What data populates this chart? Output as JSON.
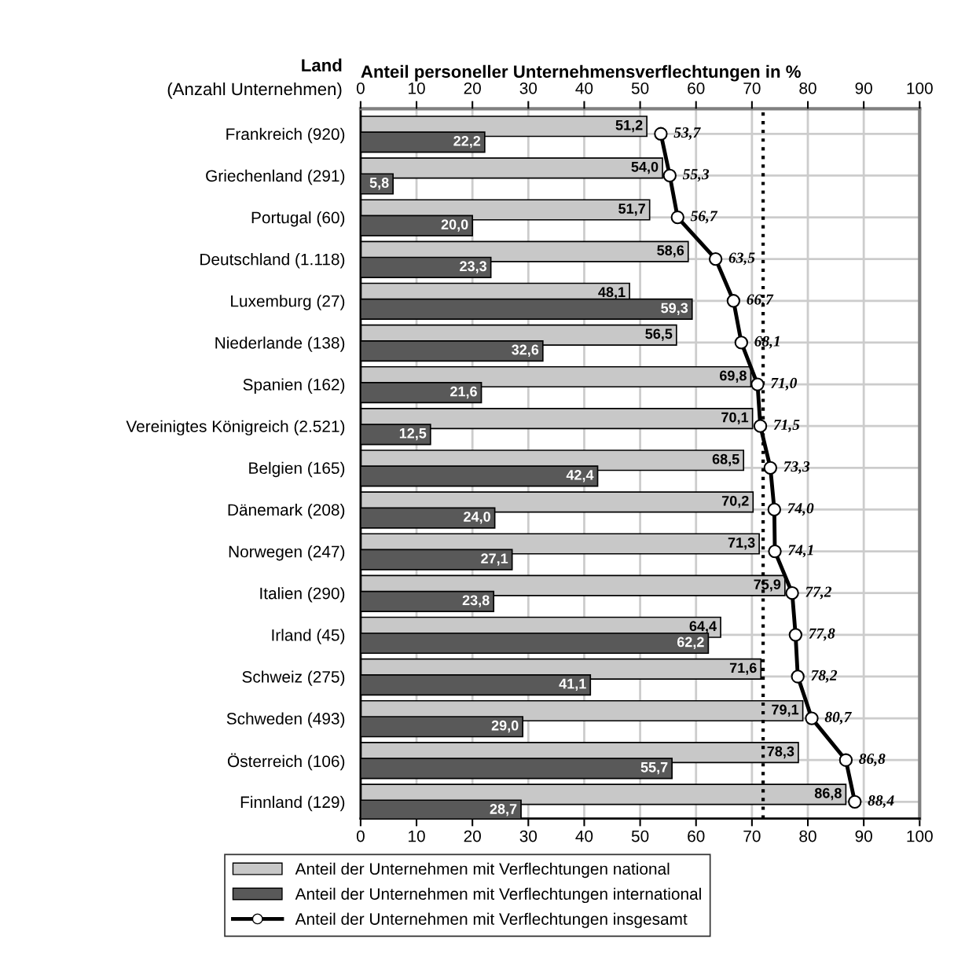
{
  "chart_data": {
    "type": "bar",
    "orientation": "horizontal",
    "ylabel": "Land",
    "x2label": "Anteil personeller Unternehmensverflechtungen in %",
    "annotations": [
      "(Anzahl Unternehmen)"
    ],
    "categories": [
      "Frankreich (920)",
      "Griechenland (291)",
      "Portugal (60)",
      "Deutschland (1.118)",
      "Luxemburg (27)",
      "Niederlande (138)",
      "Spanien (162)",
      "Vereinigtes Königreich (2.521)",
      "Belgien (165)",
      "Dänemark (208)",
      "Norwegen (247)",
      "Italien (290)",
      "Irland (45)",
      "Schweiz (275)",
      "Schweden (493)",
      "Österreich (106)",
      "Finnland (129)"
    ],
    "series": [
      {
        "name": "Anteil der Unternehmen mit Verflechtungen national",
        "color": "#c8c8c8",
        "values": [
          51.2,
          54.0,
          51.7,
          58.6,
          48.1,
          56.5,
          69.8,
          70.1,
          68.5,
          70.2,
          71.3,
          75.9,
          64.4,
          71.6,
          79.1,
          78.3,
          86.8
        ],
        "value_labels": [
          "51,2",
          "54,0",
          "51,7",
          "58,6",
          "48,1",
          "56,5",
          "69,8",
          "70,1",
          "68,5",
          "70,2",
          "71,3",
          "75,9",
          "64,4",
          "71,6",
          "79,1",
          "78,3",
          "86,8"
        ]
      },
      {
        "name": "Anteil der Unternehmen mit Verflechtungen international",
        "color": "#595959",
        "values": [
          22.2,
          5.8,
          20.0,
          23.3,
          59.3,
          32.6,
          21.6,
          12.5,
          42.4,
          24.0,
          27.1,
          23.8,
          62.2,
          41.1,
          29.0,
          55.7,
          28.7
        ],
        "value_labels": [
          "22,2",
          "5,8",
          "20,0",
          "23,3",
          "59,3",
          "32,6",
          "21,6",
          "12,5",
          "42,4",
          "24,0",
          "27,1",
          "23,8",
          "62,2",
          "41,1",
          "29,0",
          "55,7",
          "28,7"
        ]
      },
      {
        "name": "Anteil der Unternehmen mit Verflechtungen insgesamt",
        "type": "line",
        "color": "#000000",
        "marker": "circle",
        "line_style": "solid",
        "values": [
          53.7,
          55.3,
          56.7,
          63.5,
          66.7,
          68.1,
          71.0,
          71.5,
          73.3,
          74.0,
          74.1,
          77.2,
          77.8,
          78.2,
          80.7,
          86.8,
          88.4
        ],
        "value_labels": [
          "53,7",
          "55,3",
          "56,7",
          "63,5",
          "66,7",
          "68,1",
          "71,0",
          "71,5",
          "73,3",
          "74,0",
          "74,1",
          "77,2",
          "77,8",
          "78,2",
          "80,7",
          "86,8",
          "88,4"
        ]
      }
    ],
    "xlim": [
      0,
      100
    ],
    "xticks": [
      0,
      10,
      20,
      30,
      40,
      50,
      60,
      70,
      80,
      90,
      100
    ],
    "x2lim": [
      0,
      100
    ],
    "x2ticks": [
      0,
      10,
      20,
      30,
      40,
      50,
      60,
      70,
      80,
      90,
      100
    ],
    "ref_lines": [
      {
        "axis": "x",
        "value": 72.0,
        "color": "#000000",
        "line_style": "dotted"
      }
    ],
    "grid": true,
    "legend": "bottom"
  }
}
